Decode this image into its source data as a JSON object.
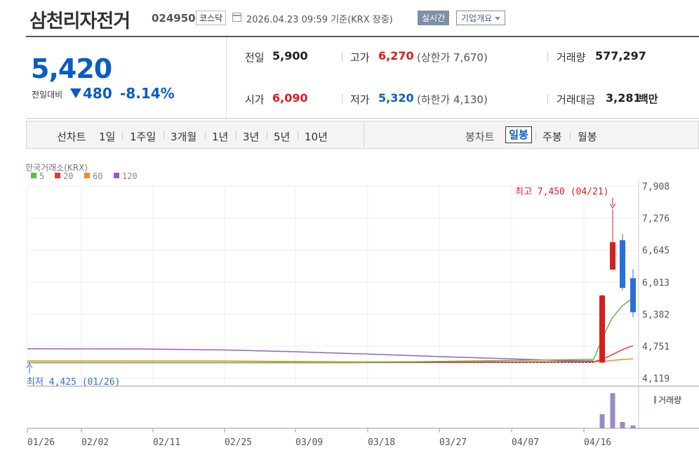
{
  "header": {
    "name": "삼천리자전거",
    "code": "024950",
    "market": "코스닥",
    "as_of": "2026.04.23 09:59  기준(KRX 장중)",
    "realtime_label": "실시간",
    "corp_label": "기업개요"
  },
  "quote": {
    "price": "5,420",
    "change_label": "전일대비",
    "change": "480",
    "change_pct": "-8.14%",
    "prev_label": "전일",
    "prev": "5,900",
    "high_label": "고가",
    "high": "6,270",
    "upper_limit": "(상한가 7,670)",
    "volume_label": "거래량",
    "volume": "577,297",
    "open_label": "시가",
    "open": "6,090",
    "low_label": "저가",
    "low": "5,320",
    "lower_limit": "(하한가 4,130)",
    "amount_label": "거래대금",
    "amount": "3,281",
    "amount_unit": "백만"
  },
  "period_bar": {
    "line_label": "선차트",
    "line_periods": [
      "1일",
      "1주일",
      "3개월",
      "1년",
      "3년",
      "5년",
      "10년"
    ],
    "candle_label": "봉차트",
    "candle_periods": [
      "일봉",
      "주봉",
      "월봉"
    ],
    "selected": "일봉"
  },
  "colors": {
    "up": "#d81e1e",
    "down": "#2a6fdb",
    "ma5": "#5dbb46",
    "ma20": "#e03a3a",
    "ma60": "#f08c2c",
    "ma120": "#9b5fc0",
    "volume": "#9b8ac8"
  },
  "chart_data": {
    "type": "candlestick",
    "source": "한국거래소(KRX)",
    "legend": [
      {
        "name": "5",
        "color": "#5dbb46"
      },
      {
        "name": "20",
        "color": "#e03a3a"
      },
      {
        "name": "60",
        "color": "#f08c2c"
      },
      {
        "name": "120",
        "color": "#9b5fc0"
      }
    ],
    "y_ticks": [
      7908,
      7276,
      6645,
      6013,
      5382,
      4751,
      4119
    ],
    "y_tick_labels": [
      "7,908",
      "7,276",
      "6,645",
      "6,013",
      "5,382",
      "4,751",
      "4,119"
    ],
    "ylim": [
      4119,
      7908
    ],
    "x_ticks": [
      "01/26",
      "02/02",
      "02/11",
      "02/25",
      "03/09",
      "03/18",
      "03/27",
      "04/07",
      "04/16"
    ],
    "high_annotation": "최고 7,450 (04/21)",
    "low_annotation": "최저 4,425 (01/26)",
    "flat_close": 4425,
    "candles": [
      {
        "date": "04/20",
        "open": 4425,
        "high": 5760,
        "low": 4425,
        "close": 5750
      },
      {
        "date": "04/21",
        "open": 6260,
        "high": 7450,
        "low": 6260,
        "close": 6800
      },
      {
        "date": "04/22",
        "open": 6840,
        "high": 6960,
        "low": 5850,
        "close": 5900
      },
      {
        "date": "04/23",
        "open": 6090,
        "high": 6270,
        "low": 5320,
        "close": 5420
      }
    ],
    "ma5": [
      4425,
      4425,
      4490,
      4900,
      5300,
      5550,
      5700
    ],
    "ma20": [
      4425,
      4425,
      4440,
      4500,
      4600,
      4690,
      4760
    ],
    "ma60": [
      4460,
      4460,
      4440,
      4440,
      4450,
      4480,
      4500
    ],
    "ma120": [
      4700,
      4696,
      4675,
      4640,
      4595,
      4545,
      4500,
      4465,
      4460
    ],
    "volume_label": "거래량",
    "volume": [
      {
        "date": "04/20",
        "value": 1.0
      },
      {
        "date": "04/21",
        "value": 2.5
      },
      {
        "date": "04/22",
        "value": 0.45
      },
      {
        "date": "04/23",
        "value": 0.2
      }
    ]
  }
}
